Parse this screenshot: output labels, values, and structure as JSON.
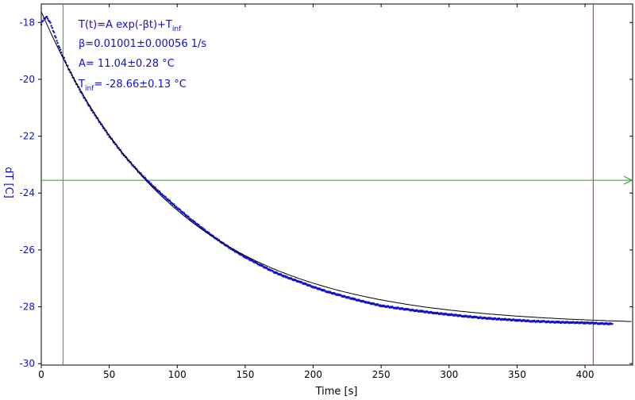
{
  "chart_data": {
    "type": "scatter",
    "xlabel": "Time [s]",
    "ylabel": "dT [C]",
    "xlim": [
      0,
      435
    ],
    "ylim": [
      -30.05,
      -17.35
    ],
    "x_ticks": [
      "0",
      "50",
      "100",
      "150",
      "200",
      "250",
      "300",
      "350",
      "400"
    ],
    "y_ticks": [
      "-18",
      "-20",
      "-22",
      "-24",
      "-26",
      "-28",
      "-30"
    ],
    "fit": {
      "equation_main": "T(t)=A exp(-βt)+T",
      "equation_sub": "inf",
      "beta_text": "β=0.01001±0.00056 1/s",
      "A_text": "A= 11.04±0.28 °C",
      "Tinf_main": "T",
      "Tinf_sub": "inf",
      "Tinf_value": "= -28.66±0.13 °C",
      "A": 11.04,
      "beta": 0.01001,
      "Tinf": -28.66
    },
    "series": [
      {
        "x": [
          0,
          2,
          4,
          6,
          8,
          10,
          12,
          14,
          16,
          18,
          20,
          25,
          30,
          35,
          40,
          50,
          60,
          70,
          80,
          90,
          100,
          110,
          120,
          130,
          140,
          150,
          160,
          170,
          180,
          190,
          200,
          210,
          220,
          230,
          240,
          250,
          260,
          270,
          280,
          290,
          300,
          310,
          320,
          330,
          340,
          350,
          360,
          370,
          380,
          390,
          400,
          410,
          420
        ],
        "y": [
          -18.05,
          -17.85,
          -17.82,
          -17.95,
          -18.2,
          -18.45,
          -18.72,
          -18.98,
          -19.2,
          -19.42,
          -19.62,
          -20.08,
          -20.52,
          -20.92,
          -21.3,
          -22.0,
          -22.62,
          -23.17,
          -23.66,
          -24.1,
          -24.52,
          -24.92,
          -25.3,
          -25.65,
          -25.97,
          -26.25,
          -26.5,
          -26.75,
          -26.95,
          -27.12,
          -27.3,
          -27.46,
          -27.6,
          -27.73,
          -27.85,
          -27.96,
          -28.03,
          -28.1,
          -28.16,
          -28.22,
          -28.27,
          -28.32,
          -28.37,
          -28.41,
          -28.44,
          -28.47,
          -28.5,
          -28.52,
          -28.54,
          -28.55,
          -28.56,
          -28.58,
          -28.6
        ]
      }
    ],
    "cursor_x": 16,
    "cursor_x2": 406,
    "cursor_y": -23.55,
    "colors": {
      "data": "#1010c8",
      "fit": "#000000",
      "cursor_green": "#2aa02a",
      "cursor_red": "#c81e1e",
      "axis": "#000000",
      "label": "#1010c8"
    }
  }
}
